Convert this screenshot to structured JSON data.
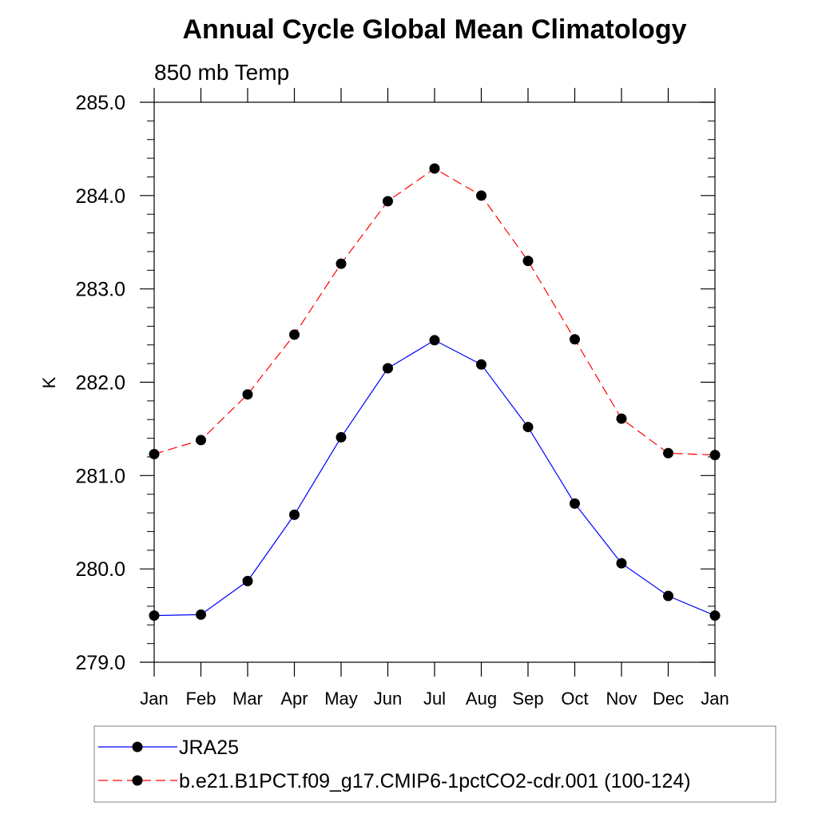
{
  "chart_data": {
    "type": "line",
    "title": "Annual Cycle Global Mean Climatology",
    "subtitle": "850 mb Temp",
    "xlabel": "",
    "ylabel": "K",
    "categories": [
      "Jan",
      "Feb",
      "Mar",
      "Apr",
      "May",
      "Jun",
      "Jul",
      "Aug",
      "Sep",
      "Oct",
      "Nov",
      "Dec",
      "Jan"
    ],
    "ylim": [
      279.0,
      285.0
    ],
    "yticks": [
      "279.0",
      "280.0",
      "281.0",
      "282.0",
      "283.0",
      "284.0",
      "285.0"
    ],
    "y_minor_step": 0.2,
    "grid": false,
    "legend_position": "bottom",
    "series": [
      {
        "name": "JRA25",
        "color": "#0000ff",
        "dash": "solid",
        "marker": "filled-circle",
        "values": [
          279.5,
          279.51,
          279.87,
          280.58,
          281.41,
          282.15,
          282.45,
          282.19,
          281.52,
          280.7,
          280.06,
          279.71,
          279.5
        ]
      },
      {
        "name": "b.e21.B1PCT.f09_g17.CMIP6-1pctCO2-cdr.001 (100-124)",
        "color": "#ff0000",
        "dash": "dashed",
        "marker": "filled-circle",
        "values": [
          281.23,
          281.38,
          281.87,
          282.51,
          283.27,
          283.94,
          284.29,
          284.0,
          283.3,
          282.46,
          281.61,
          281.24,
          281.22
        ]
      }
    ]
  }
}
